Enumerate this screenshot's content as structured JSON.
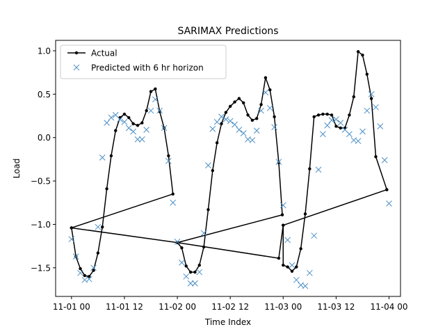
{
  "chart_data": {
    "type": "line",
    "title": "SARIMAX Predictions",
    "xlabel": "Time Index",
    "ylabel": "Load",
    "x_ticks": [
      {
        "label": "11-01 00",
        "value": 0
      },
      {
        "label": "11-01 12",
        "value": 12
      },
      {
        "label": "11-02 00",
        "value": 24
      },
      {
        "label": "11-02 12",
        "value": 36
      },
      {
        "label": "11-03 00",
        "value": 48
      },
      {
        "label": "11-03 12",
        "value": 60
      },
      {
        "label": "11-04 00",
        "value": 72
      }
    ],
    "y_ticks": [
      {
        "label": "−1.5",
        "value": -1.5
      },
      {
        "label": "−1.0",
        "value": -1.0
      },
      {
        "label": "−0.5",
        "value": -0.5
      },
      {
        "label": "0.0",
        "value": 0.0
      },
      {
        "label": "0.5",
        "value": 0.5
      },
      {
        "label": "1.0",
        "value": 1.0
      }
    ],
    "xlim": [
      -3.6,
      74.6
    ],
    "ylim": [
      -1.83,
      1.12
    ],
    "grid": false,
    "legend_position": "top-left",
    "series": [
      {
        "name": "Actual",
        "style": "line-dot",
        "color": "#000000",
        "points": [
          [
            0,
            -1.04
          ],
          [
            1,
            -1.37
          ],
          [
            2,
            -1.51
          ],
          [
            3,
            -1.59
          ],
          [
            4,
            -1.6
          ],
          [
            5,
            -1.53
          ],
          [
            6,
            -1.33
          ],
          [
            7,
            -1.03
          ],
          [
            8,
            -0.59
          ],
          [
            9,
            -0.21
          ],
          [
            10,
            0.08
          ],
          [
            11,
            0.23
          ],
          [
            12,
            0.27
          ],
          [
            13,
            0.23
          ],
          [
            14,
            0.16
          ],
          [
            15,
            0.14
          ],
          [
            16,
            0.17
          ],
          [
            17,
            0.31
          ],
          [
            18,
            0.53
          ],
          [
            19,
            0.56
          ],
          [
            20,
            0.3
          ],
          [
            21,
            0.11
          ],
          [
            22,
            -0.21
          ],
          [
            23,
            -0.65
          ],
          [
            0,
            -1.04
          ],
          [
            24,
            -1.21
          ],
          [
            24,
            -1.21
          ],
          [
            25,
            -1.27
          ],
          [
            26,
            -1.48
          ],
          [
            27,
            -1.55
          ],
          [
            28,
            -1.55
          ],
          [
            29,
            -1.47
          ],
          [
            30,
            -1.26
          ],
          [
            31,
            -0.83
          ],
          [
            32,
            -0.38
          ],
          [
            33,
            -0.06
          ],
          [
            34,
            0.16
          ],
          [
            35,
            0.29
          ],
          [
            36,
            0.36
          ],
          [
            37,
            0.41
          ],
          [
            38,
            0.45
          ],
          [
            39,
            0.4
          ],
          [
            40,
            0.26
          ],
          [
            41,
            0.2
          ],
          [
            42,
            0.22
          ],
          [
            43,
            0.38
          ],
          [
            44,
            0.69
          ],
          [
            45,
            0.55
          ],
          [
            46,
            0.24
          ],
          [
            47,
            -0.29
          ],
          [
            47.8,
            -0.89
          ],
          [
            24,
            -1.21
          ],
          [
            47,
            -1.39
          ],
          [
            48,
            -1.01
          ],
          [
            48,
            -1.47
          ],
          [
            49,
            -1.49
          ],
          [
            50,
            -1.54
          ],
          [
            51,
            -1.49
          ],
          [
            52,
            -1.28
          ],
          [
            53,
            -0.88
          ],
          [
            54,
            -0.36
          ],
          [
            55,
            0.24
          ],
          [
            56,
            0.26
          ],
          [
            57,
            0.27
          ],
          [
            58,
            0.27
          ],
          [
            59,
            0.26
          ],
          [
            60,
            0.13
          ],
          [
            61,
            0.11
          ],
          [
            62,
            0.11
          ],
          [
            63,
            0.26
          ],
          [
            64,
            0.47
          ],
          [
            65,
            0.99
          ],
          [
            66,
            0.95
          ],
          [
            67,
            0.73
          ],
          [
            68,
            0.45
          ],
          [
            69,
            -0.22
          ],
          [
            71.5,
            -0.6
          ],
          [
            48,
            -1.01
          ],
          [
            71.5,
            -0.6
          ]
        ]
      },
      {
        "name": "Predicted with 6 hr horizon",
        "style": "x-marker",
        "color": "#4c8fc5",
        "points": [
          [
            0,
            -1.17
          ],
          [
            1,
            -1.37
          ],
          [
            2,
            -1.56
          ],
          [
            3,
            -1.64
          ],
          [
            4,
            -1.63
          ],
          [
            5,
            -1.5
          ],
          [
            6,
            -1.03
          ],
          [
            7,
            -0.23
          ],
          [
            8,
            0.17
          ],
          [
            9,
            0.23
          ],
          [
            10,
            0.26
          ],
          [
            11,
            0.21
          ],
          [
            12,
            0.18
          ],
          [
            13,
            0.11
          ],
          [
            14,
            0.07
          ],
          [
            15,
            -0.02
          ],
          [
            16,
            -0.02
          ],
          [
            17,
            0.09
          ],
          [
            18,
            0.31
          ],
          [
            19,
            0.44
          ],
          [
            20,
            0.31
          ],
          [
            21,
            0.11
          ],
          [
            22,
            -0.27
          ],
          [
            23,
            -0.75
          ],
          [
            24,
            -1.2
          ],
          [
            25,
            -1.44
          ],
          [
            26,
            -1.6
          ],
          [
            27,
            -1.68
          ],
          [
            28,
            -1.68
          ],
          [
            29,
            -1.55
          ],
          [
            30,
            -1.1
          ],
          [
            31,
            -0.32
          ],
          [
            32,
            0.1
          ],
          [
            33,
            0.18
          ],
          [
            34,
            0.24
          ],
          [
            35,
            0.21
          ],
          [
            36,
            0.19
          ],
          [
            37,
            0.15
          ],
          [
            38,
            0.09
          ],
          [
            39,
            0.05
          ],
          [
            40,
            -0.02
          ],
          [
            41,
            -0.03
          ],
          [
            42,
            0.08
          ],
          [
            43,
            0.31
          ],
          [
            44,
            0.52
          ],
          [
            45,
            0.34
          ],
          [
            46,
            0.12
          ],
          [
            47,
            -0.28
          ],
          [
            48,
            -0.78
          ],
          [
            49,
            -1.18
          ],
          [
            50,
            -1.47
          ],
          [
            51,
            -1.64
          ],
          [
            52,
            -1.7
          ],
          [
            53,
            -1.71
          ],
          [
            54,
            -1.56
          ],
          [
            55,
            -1.13
          ],
          [
            56,
            -0.37
          ],
          [
            57,
            0.04
          ],
          [
            58,
            0.14
          ],
          [
            59,
            0.2
          ],
          [
            60,
            0.21
          ],
          [
            61,
            0.17
          ],
          [
            62,
            0.09
          ],
          [
            63,
            0.04
          ],
          [
            64,
            -0.03
          ],
          [
            65,
            -0.04
          ],
          [
            66,
            0.07
          ],
          [
            67,
            0.31
          ],
          [
            68,
            0.5
          ],
          [
            69,
            0.35
          ],
          [
            70,
            0.13
          ],
          [
            71,
            -0.26
          ],
          [
            72,
            -0.76
          ]
        ]
      }
    ]
  }
}
